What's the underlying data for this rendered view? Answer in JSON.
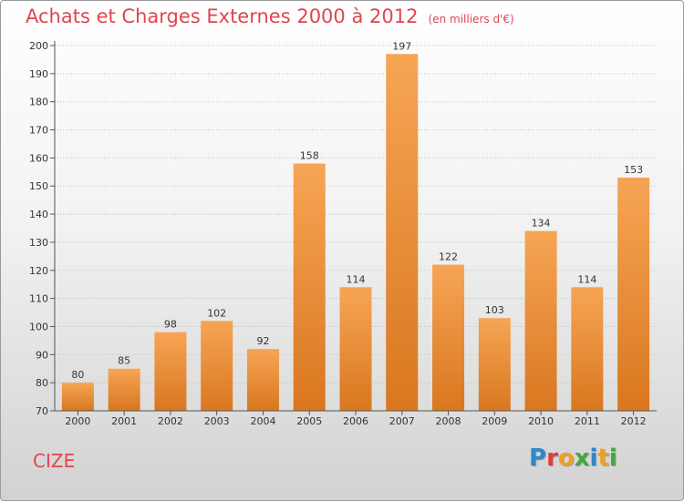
{
  "title": "Achats et Charges Externes 2000 à 2012",
  "unit_note": "(en milliers d'€)",
  "commune": "CIZE",
  "logo": {
    "text": "Proxiti",
    "letter_colors": [
      "#2f86c8",
      "#e23b3b",
      "#f0a020",
      "#44a83c",
      "#2f86c8",
      "#f0a020",
      "#44a83c"
    ]
  },
  "colors": {
    "title": "#e0454f",
    "bar_light": "#f6a555",
    "bar_dark": "#d9771f",
    "axis": "#555555",
    "grid": "#bbbbbb"
  },
  "chart_data": {
    "type": "bar",
    "title": "Achats et Charges Externes 2000 à 2012",
    "subtitle": "(en milliers d'€)",
    "xlabel": "",
    "ylabel": "",
    "categories": [
      "2000",
      "2001",
      "2002",
      "2003",
      "2004",
      "2005",
      "2006",
      "2007",
      "2008",
      "2009",
      "2010",
      "2011",
      "2012"
    ],
    "values": [
      80,
      85,
      98,
      102,
      92,
      158,
      114,
      197,
      122,
      103,
      134,
      114,
      153
    ],
    "ylim": [
      70,
      200
    ],
    "yticks": [
      70,
      80,
      90,
      100,
      110,
      120,
      130,
      140,
      150,
      160,
      170,
      180,
      190,
      200
    ],
    "grid": true,
    "data_labels": true
  }
}
